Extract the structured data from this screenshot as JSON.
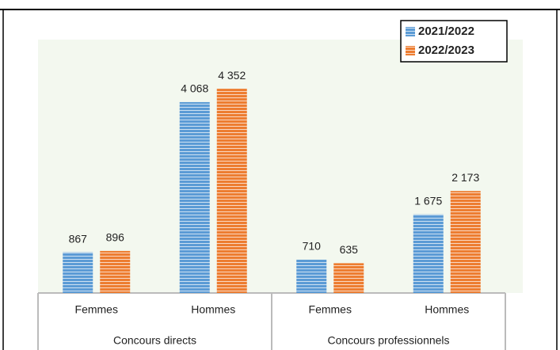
{
  "chart_data": {
    "type": "bar",
    "categories": [
      "Femmes",
      "Hommes",
      "Femmes",
      "Hommes"
    ],
    "category_groups": [
      "Concours directs",
      "Concours professionnels"
    ],
    "series": [
      {
        "name": "2021/2022",
        "color": "#5b9bd5",
        "values": [
          867,
          4068,
          710,
          1675
        ],
        "value_labels": [
          "867",
          "4 068",
          "710",
          "1 675"
        ]
      },
      {
        "name": "2022/2023",
        "color": "#ed7d31",
        "values": [
          896,
          4352,
          635,
          2173
        ],
        "value_labels": [
          "896",
          "4 352",
          "635",
          "2 173"
        ]
      }
    ],
    "ylim": [
      0,
      5400
    ],
    "legend": "top-right"
  }
}
